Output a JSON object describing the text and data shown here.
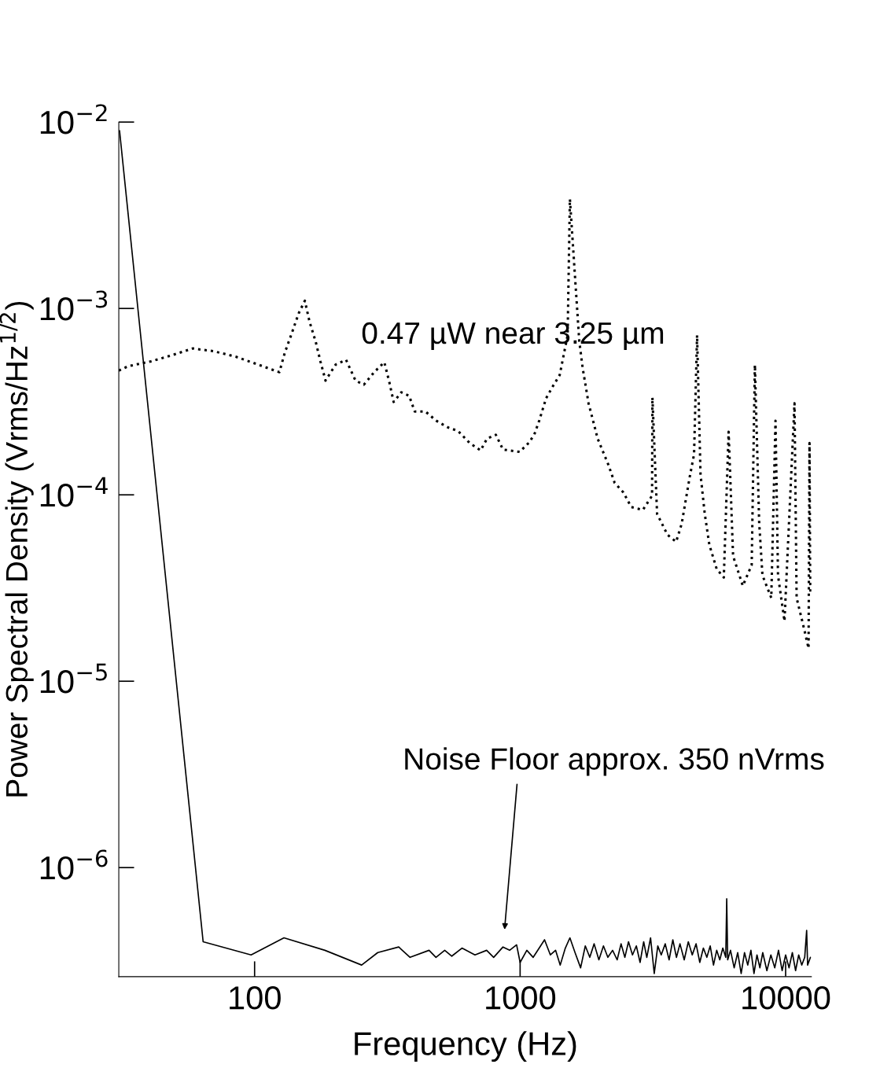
{
  "chart_data": {
    "type": "line",
    "xlabel": "Frequency (Hz)",
    "ylabel": "Power Spectral Density (Vrms/Hz$^{1/2}$)",
    "log": "xy",
    "xlim": [
      30.8,
      12500
    ],
    "ylim": [
      2.6e-07,
      0.01
    ],
    "xticks": [
      100,
      1000,
      10000
    ],
    "yticks": [
      {
        "value": 1e-06,
        "label": "10$^{−6}$"
      },
      {
        "value": 1e-05,
        "label": "10$^{−5}$"
      },
      {
        "value": 0.0001,
        "label": "10$^{−4}$"
      },
      {
        "value": 0.001,
        "label": "10$^{−3}$"
      },
      {
        "value": 0.01,
        "label": "10$^{−2}$"
      }
    ],
    "grid": false,
    "legend": false,
    "series": [
      {
        "line_style": "solid",
        "color": "#000000",
        "x": [
          31,
          64,
          97,
          129,
          184,
          253,
          291,
          349,
          385,
          454,
          482,
          520,
          553,
          604,
          676,
          748,
          795,
          862,
          913,
          970,
          1000,
          1060,
          1120,
          1180,
          1236,
          1300,
          1360,
          1416,
          1480,
          1540,
          1610,
          1690,
          1760,
          1830,
          1900,
          1980,
          2060,
          2140,
          2230,
          2320,
          2400,
          2480,
          2560,
          2650,
          2740,
          2830,
          2920,
          3000,
          3100,
          3200,
          3300,
          3400,
          3520,
          3640,
          3760,
          3880,
          4000,
          4150,
          4300,
          4450,
          4600,
          4750,
          4900,
          5050,
          5200,
          5350,
          5500,
          5650,
          5800,
          5950,
          6000,
          6050,
          6200,
          6400,
          6600,
          6800,
          7000,
          7200,
          7400,
          7600,
          7800,
          8000,
          8200,
          8500,
          8800,
          9100,
          9400,
          9700,
          10000,
          10300,
          10600,
          10900,
          11200,
          11500,
          11800,
          12000,
          12100,
          12400
        ],
        "values": [
          0.009,
          4e-07,
          3.4e-07,
          4.2e-07,
          3.6e-07,
          3e-07,
          3.5e-07,
          3.75e-07,
          3.3e-07,
          3.6e-07,
          3.3e-07,
          3.6e-07,
          3.35e-07,
          3.7e-07,
          3.4e-07,
          3.6e-07,
          3.3e-07,
          3.75e-07,
          3.6e-07,
          3.85e-07,
          3.1e-07,
          3.6e-07,
          3.3e-07,
          3.7e-07,
          4.1e-07,
          3.4e-07,
          3.6e-07,
          3e-07,
          3.7e-07,
          4.2e-07,
          3.5e-07,
          2.9e-07,
          3.8e-07,
          3.3e-07,
          3.9e-07,
          3.2e-07,
          3.8e-07,
          3.3e-07,
          3.6e-07,
          3.2e-07,
          3.9e-07,
          3.3e-07,
          4e-07,
          3.4e-07,
          3.8e-07,
          3.1e-07,
          4e-07,
          3.3e-07,
          4.2e-07,
          2.7e-07,
          3.8e-07,
          3.4e-07,
          3.9e-07,
          3.2e-07,
          4.1e-07,
          3.3e-07,
          3.9e-07,
          3.2e-07,
          4e-07,
          3.4e-07,
          3.9e-07,
          3.1e-07,
          3.7e-07,
          3.3e-07,
          3.8e-07,
          3e-07,
          3.6e-07,
          3.2e-07,
          3.7e-07,
          3.3e-07,
          6.8e-07,
          3.2e-07,
          3.6e-07,
          2.9e-07,
          3.5e-07,
          2.7e-07,
          3.5e-07,
          3e-07,
          3.6e-07,
          2.7e-07,
          3.4e-07,
          2.9e-07,
          3.5e-07,
          2.8e-07,
          3.4e-07,
          2.9e-07,
          3.6e-07,
          2.8e-07,
          3.4e-07,
          2.9e-07,
          3.5e-07,
          2.8e-07,
          3.4e-07,
          3e-07,
          3.3e-07,
          4.6e-07,
          3e-07,
          3.3e-07
        ]
      },
      {
        "line_style": "dotted",
        "color": "#000000",
        "x": [
          30.8,
          33.4,
          40.7,
          48.6,
          58.4,
          70,
          85.3,
          103,
          124,
          130,
          138,
          146.5,
          154.6,
          161,
          170,
          177,
          185,
          202,
          221,
          240,
          258,
          282,
          308,
          322,
          334,
          357,
          382,
          401,
          440,
          483,
          535,
          584,
          645,
          710,
          750,
          810,
          862,
          996,
          1077,
          1130,
          1180,
          1253,
          1325,
          1410,
          1510,
          1540,
          1670,
          1720,
          1810,
          1960,
          2150,
          2270,
          2450,
          2620,
          2900,
          3140,
          3150,
          3280,
          3590,
          3870,
          4060,
          4350,
          4520,
          4640,
          4780,
          4960,
          5160,
          5500,
          5850,
          6100,
          6340,
          6900,
          7450,
          7660,
          7950,
          8180,
          8830,
          9160,
          9360,
          9900,
          10800,
          11000,
          11800,
          12200,
          12300,
          12400
        ],
        "values": [
          0.000464,
          0.00049,
          0.00052,
          0.00056,
          0.00061,
          0.00059,
          0.00055,
          0.0005,
          0.000455,
          0.00058,
          0.000735,
          0.00094,
          0.0011,
          0.00085,
          0.00066,
          0.00052,
          0.00041,
          0.0005,
          0.00053,
          0.00041,
          0.00039,
          0.000455,
          0.000515,
          0.0004,
          0.000315,
          0.000355,
          0.00034,
          0.00028,
          0.00028,
          0.00025,
          0.00023,
          0.00022,
          0.00019,
          0.000173,
          0.0002,
          0.00021,
          0.000175,
          0.00017,
          0.00019,
          0.00021,
          0.00025,
          0.00033,
          0.00038,
          0.00044,
          0.00072,
          0.00386,
          0.00067,
          0.00048,
          0.00031,
          0.0002,
          0.000145,
          0.000116,
          0.000103,
          8.6e-05,
          8.3e-05,
          9.9e-05,
          0.000333,
          7.9e-05,
          6.1e-05,
          5.6e-05,
          7e-05,
          0.000124,
          0.000165,
          0.00072,
          0.000129,
          7.9e-05,
          5.4e-05,
          4e-05,
          3.6e-05,
          0.000218,
          4.7e-05,
          3.25e-05,
          4.2e-05,
          0.000498,
          7.1e-05,
          3.7e-05,
          2.8e-05,
          0.00025,
          3.7e-05,
          2.1e-05,
          0.00031,
          2.8e-05,
          1.85e-05,
          1.5e-05,
          0.00019,
          3e-05
        ]
      }
    ],
    "annotations": [
      "0.47 µW near 3.25 µm",
      "Noise Floor approx. 350 nVrms"
    ]
  }
}
